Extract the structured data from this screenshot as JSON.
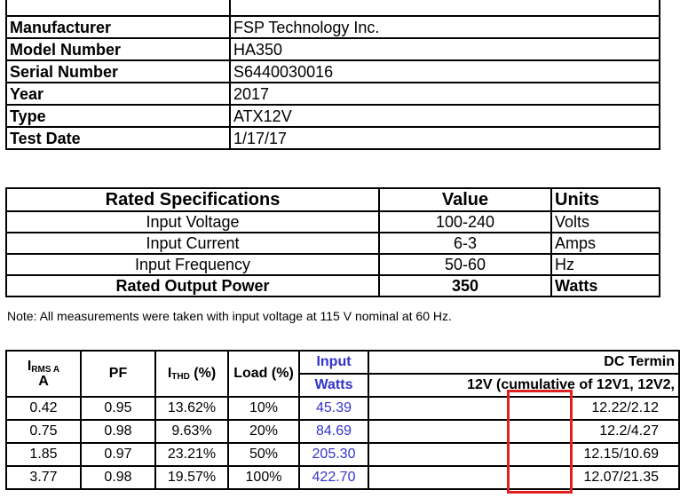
{
  "info_rows": [
    {
      "label": "Manufacturer",
      "value": "FSP Technology Inc."
    },
    {
      "label": "Model Number",
      "value": "HA350"
    },
    {
      "label": "Serial Number",
      "value": "S6440030016"
    },
    {
      "label": "Year",
      "value": "2017"
    },
    {
      "label": "Type",
      "value": "ATX12V"
    },
    {
      "label": "Test Date",
      "value": "1/17/17"
    }
  ],
  "specs": {
    "header": {
      "spec": "Rated Specifications",
      "value": "Value",
      "units": "Units"
    },
    "rows": [
      {
        "spec": "Input Voltage",
        "value": "100-240",
        "units": "Volts"
      },
      {
        "spec": "Input Current",
        "value": "6-3",
        "units": "Amps"
      },
      {
        "spec": "Input Frequency",
        "value": "50-60",
        "units": "Hz"
      },
      {
        "spec": "Rated Output Power",
        "value": "350",
        "units": "Watts"
      }
    ]
  },
  "note": "Note: All measurements were taken with input voltage at 115 V nominal at 60 Hz.",
  "measurements": {
    "headers": {
      "irms_top": "I",
      "irms_sub": "RMS A",
      "irms_unit": "A",
      "pf": "PF",
      "ithd_main": "I",
      "ithd_sub": "THD",
      "ithd_unit": " (%)",
      "load": "Load (%)",
      "input_watts_1": "Input",
      "input_watts_2": "Watts",
      "dc_group": "DC Termin",
      "dc_12v": "12V (cumulative of 12V1, 12V2,"
    },
    "rows": [
      {
        "irms": "0.42",
        "pf": "0.95",
        "ithd": "13.62%",
        "load": "10%",
        "watts": "45.39",
        "dc": "12.22/2.12"
      },
      {
        "irms": "0.75",
        "pf": "0.98",
        "ithd": "9.63%",
        "load": "20%",
        "watts": "84.69",
        "dc": "12.2/4.27"
      },
      {
        "irms": "1.85",
        "pf": "0.97",
        "ithd": "23.21%",
        "load": "50%",
        "watts": "205.30",
        "dc": "12.15/10.69"
      },
      {
        "irms": "3.77",
        "pf": "0.98",
        "ithd": "19.57%",
        "load": "100%",
        "watts": "422.70",
        "dc": "12.07/21.35"
      }
    ]
  },
  "colors": {
    "highlight": "#e0201e",
    "input_watts": "#3333cc"
  }
}
